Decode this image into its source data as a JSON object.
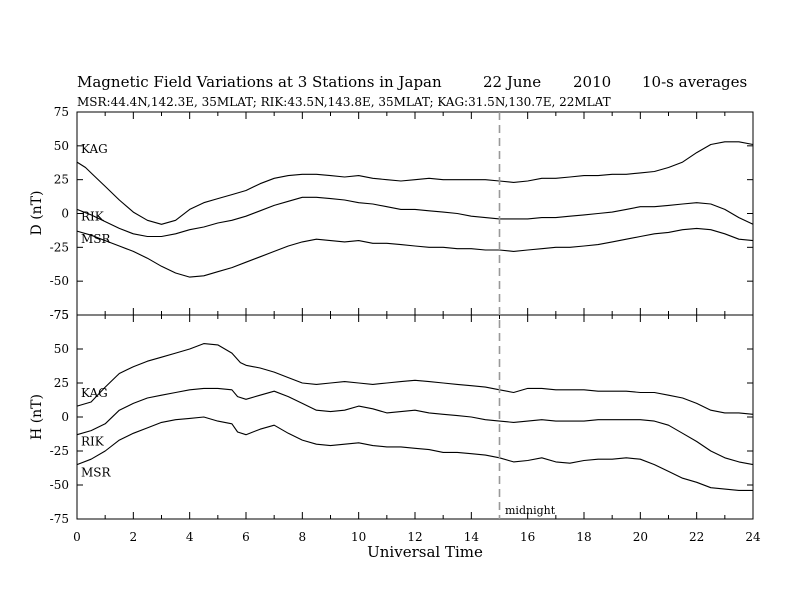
{
  "chart_data": {
    "type": "line",
    "title": {
      "main": "Magnetic Field Variations at 3 Stations in Japan",
      "date": "22 June",
      "year": "2010",
      "averaging": "10-s averages"
    },
    "subtitle": "MSR:44.4N,142.3E, 35MLAT;  RIK:43.5N,143.8E, 35MLAT;  KAG:31.5N,130.7E, 22MLAT",
    "xlabel": "Universal Time",
    "xlim": [
      0,
      24
    ],
    "xticks": [
      0,
      2,
      4,
      6,
      8,
      10,
      12,
      14,
      16,
      18,
      20,
      22,
      24
    ],
    "grid": false,
    "annotation": {
      "x": 15,
      "text": "midnight",
      "style": "dashed vertical line"
    },
    "panels": [
      {
        "name": "D",
        "ylabel": "D (nT)",
        "ylim": [
          -75,
          75
        ],
        "yticks": [
          75,
          50,
          25,
          0,
          -25,
          -50,
          -75
        ],
        "series": [
          {
            "name": "KAG",
            "x": [
              0,
              0.3,
              0.6,
              1,
              1.5,
              2,
              2.5,
              3,
              3.5,
              4,
              4.5,
              5,
              5.5,
              6,
              6.5,
              7,
              7.5,
              8,
              8.5,
              9,
              9.5,
              10,
              10.5,
              11,
              11.5,
              12,
              12.5,
              13,
              13.5,
              14,
              14.5,
              15,
              15.5,
              16,
              16.5,
              17,
              17.5,
              18,
              18.5,
              19,
              19.5,
              20,
              20.5,
              21,
              21.5,
              22,
              22.5,
              23,
              23.5,
              24
            ],
            "values": [
              38,
              34,
              28,
              20,
              10,
              1,
              -5,
              -8,
              -5,
              3,
              8,
              11,
              14,
              17,
              22,
              26,
              28,
              29,
              29,
              28,
              27,
              28,
              26,
              25,
              24,
              25,
              26,
              25,
              25,
              25,
              25,
              24,
              23,
              24,
              26,
              26,
              27,
              28,
              28,
              29,
              29,
              30,
              31,
              34,
              38,
              45,
              51,
              53,
              53,
              51
            ]
          },
          {
            "name": "RIK",
            "x": [
              0,
              0.5,
              1,
              1.5,
              2,
              2.5,
              3,
              3.5,
              4,
              4.5,
              5,
              5.5,
              6,
              6.5,
              7,
              7.5,
              8,
              8.5,
              9,
              9.5,
              10,
              10.5,
              11,
              11.5,
              12,
              12.5,
              13,
              13.5,
              14,
              14.5,
              15,
              15.5,
              16,
              16.5,
              17,
              17.5,
              18,
              18.5,
              19,
              19.5,
              20,
              20.5,
              21,
              21.5,
              22,
              22.5,
              23,
              23.5,
              24
            ],
            "values": [
              3,
              -1,
              -6,
              -11,
              -15,
              -17,
              -17,
              -15,
              -12,
              -10,
              -7,
              -5,
              -2,
              2,
              6,
              9,
              12,
              12,
              11,
              10,
              8,
              7,
              5,
              3,
              3,
              2,
              1,
              0,
              -2,
              -3,
              -4,
              -4,
              -4,
              -3,
              -3,
              -2,
              -1,
              0,
              1,
              3,
              5,
              5,
              6,
              7,
              8,
              7,
              3,
              -3,
              -8
            ]
          },
          {
            "name": "MSR",
            "x": [
              0,
              0.5,
              1,
              1.5,
              2,
              2.5,
              3,
              3.5,
              4,
              4.5,
              5,
              5.5,
              6,
              6.5,
              7,
              7.5,
              8,
              8.5,
              9,
              9.5,
              10,
              10.5,
              11,
              11.5,
              12,
              12.5,
              13,
              13.5,
              14,
              14.5,
              15,
              15.5,
              16,
              16.5,
              17,
              17.5,
              18,
              18.5,
              19,
              19.5,
              20,
              20.5,
              21,
              21.5,
              22,
              22.5,
              23,
              23.5,
              24
            ],
            "values": [
              -13,
              -16,
              -20,
              -24,
              -28,
              -33,
              -39,
              -44,
              -47,
              -46,
              -43,
              -40,
              -36,
              -32,
              -28,
              -24,
              -21,
              -19,
              -20,
              -21,
              -20,
              -22,
              -22,
              -23,
              -24,
              -25,
              -25,
              -26,
              -26,
              -27,
              -27,
              -28,
              -27,
              -26,
              -25,
              -25,
              -24,
              -23,
              -21,
              -19,
              -17,
              -15,
              -14,
              -12,
              -11,
              -12,
              -15,
              -19,
              -20
            ]
          }
        ]
      },
      {
        "name": "H",
        "ylabel": "H (nT)",
        "ylim": [
          -75,
          75
        ],
        "yticks": [
          75,
          50,
          25,
          0,
          -25,
          -50,
          -75
        ],
        "series": [
          {
            "name": "KAG",
            "x": [
              0,
              0.5,
              1,
              1.5,
              2,
              2.5,
              3,
              3.5,
              4,
              4.5,
              5,
              5.5,
              5.8,
              6,
              6.5,
              7,
              7.5,
              8,
              8.5,
              9,
              9.5,
              10,
              10.5,
              11,
              11.5,
              12,
              12.5,
              13,
              13.5,
              14,
              14.5,
              15,
              15.5,
              16,
              16.5,
              17,
              17.5,
              18,
              18.5,
              19,
              19.5,
              20,
              20.5,
              21,
              21.5,
              22,
              22.5,
              23,
              23.5,
              24
            ],
            "values": [
              8,
              11,
              22,
              32,
              37,
              41,
              44,
              47,
              50,
              54,
              53,
              47,
              40,
              38,
              36,
              33,
              29,
              25,
              24,
              25,
              26,
              25,
              24,
              25,
              26,
              27,
              26,
              25,
              24,
              23,
              22,
              20,
              18,
              21,
              21,
              20,
              20,
              20,
              19,
              19,
              19,
              18,
              18,
              16,
              14,
              10,
              5,
              3,
              3,
              2
            ]
          },
          {
            "name": "RIK",
            "x": [
              0,
              0.5,
              1,
              1.5,
              2,
              2.5,
              3,
              3.5,
              4,
              4.5,
              5,
              5.5,
              5.7,
              6,
              6.5,
              7,
              7.5,
              8,
              8.5,
              9,
              9.5,
              10,
              10.5,
              11,
              11.5,
              12,
              12.5,
              13,
              13.5,
              14,
              14.5,
              15,
              15.5,
              16,
              16.5,
              17,
              17.5,
              18,
              18.5,
              19,
              19.5,
              20,
              20.5,
              21,
              21.5,
              22,
              22.5,
              23,
              23.5,
              24
            ],
            "values": [
              -13,
              -10,
              -5,
              5,
              10,
              14,
              16,
              18,
              20,
              21,
              21,
              20,
              15,
              13,
              16,
              19,
              15,
              10,
              5,
              4,
              5,
              8,
              6,
              3,
              4,
              5,
              3,
              2,
              1,
              0,
              -2,
              -3,
              -4,
              -3,
              -2,
              -3,
              -3,
              -3,
              -2,
              -2,
              -2,
              -2,
              -3,
              -6,
              -12,
              -18,
              -25,
              -30,
              -33,
              -35
            ]
          },
          {
            "name": "MSR",
            "x": [
              0,
              0.5,
              1,
              1.5,
              2,
              2.5,
              3,
              3.5,
              4,
              4.5,
              5,
              5.5,
              5.7,
              6,
              6.5,
              7,
              7.5,
              8,
              8.5,
              9,
              9.5,
              10,
              10.5,
              11,
              11.5,
              12,
              12.5,
              13,
              13.5,
              14,
              14.5,
              15,
              15.5,
              16,
              16.5,
              17,
              17.5,
              18,
              18.5,
              19,
              19.5,
              20,
              20.5,
              21,
              21.5,
              22,
              22.5,
              23,
              23.5,
              24
            ],
            "values": [
              -35,
              -31,
              -25,
              -17,
              -12,
              -8,
              -4,
              -2,
              -1,
              0,
              -3,
              -5,
              -11,
              -13,
              -9,
              -6,
              -12,
              -17,
              -20,
              -21,
              -20,
              -19,
              -21,
              -22,
              -22,
              -23,
              -24,
              -26,
              -26,
              -27,
              -28,
              -30,
              -33,
              -32,
              -30,
              -33,
              -34,
              -32,
              -31,
              -31,
              -30,
              -31,
              -35,
              -40,
              -45,
              -48,
              -52,
              -53,
              -54,
              -54
            ]
          }
        ]
      }
    ],
    "station_labels": [
      "KAG",
      "RIK",
      "MSR"
    ]
  }
}
